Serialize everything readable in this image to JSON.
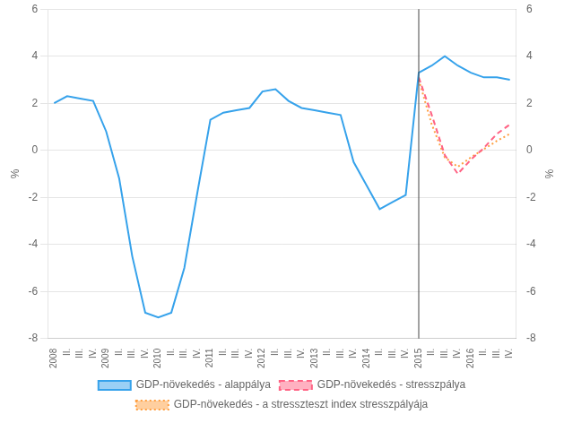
{
  "chart_data": {
    "type": "line",
    "categories": [
      "2008",
      "II.",
      "III.",
      "IV.",
      "2009",
      "II.",
      "III.",
      "IV.",
      "2010",
      "II.",
      "III.",
      "IV.",
      "2011",
      "II.",
      "III.",
      "IV.",
      "2012",
      "II.",
      "III.",
      "IV.",
      "2013",
      "II.",
      "III.",
      "IV.",
      "2014",
      "II.",
      "III.",
      "IV.",
      "2015",
      "II.",
      "III.",
      "IV.",
      "2016",
      "II.",
      "III.",
      "IV."
    ],
    "series": [
      {
        "name": "GDP-növekedés - alappálya",
        "line_style": "solid",
        "values": [
          2.0,
          2.3,
          2.2,
          2.1,
          0.8,
          -1.2,
          -4.5,
          -6.9,
          -7.1,
          -6.9,
          -5.0,
          -1.8,
          1.3,
          1.6,
          1.7,
          1.8,
          2.5,
          2.6,
          2.1,
          1.8,
          1.7,
          1.6,
          1.5,
          -0.5,
          -1.5,
          -2.5,
          -2.2,
          -1.9,
          3.3,
          3.6,
          4.0,
          3.6,
          3.3,
          3.1,
          3.1,
          3.0
        ]
      },
      {
        "name": "GDP-növekedés - stresszpálya",
        "line_style": "dashed",
        "values": [
          null,
          null,
          null,
          null,
          null,
          null,
          null,
          null,
          null,
          null,
          null,
          null,
          null,
          null,
          null,
          null,
          null,
          null,
          null,
          null,
          null,
          null,
          null,
          null,
          null,
          null,
          null,
          null,
          3.1,
          1.5,
          -0.2,
          -1.0,
          -0.4,
          0.1,
          0.7,
          1.1
        ]
      },
      {
        "name": "GDP-növekedés - a stresszteszt index stresszpályája",
        "line_style": "dotted",
        "values": [
          null,
          null,
          null,
          null,
          null,
          null,
          null,
          null,
          null,
          null,
          null,
          null,
          null,
          null,
          null,
          null,
          null,
          null,
          null,
          null,
          null,
          null,
          null,
          null,
          null,
          null,
          null,
          null,
          3.0,
          1.1,
          -0.3,
          -0.7,
          -0.3,
          0.05,
          0.4,
          0.7
        ]
      }
    ],
    "ylabel": "%",
    "y2label": "%",
    "ylim": [
      -8,
      6
    ],
    "yticks": [
      -8,
      -6,
      -4,
      -2,
      0,
      2,
      4,
      6
    ],
    "y2lim": [
      -8,
      6
    ],
    "y2ticks": [
      -8,
      -6,
      -4,
      -2,
      0,
      2,
      4,
      6
    ],
    "grid": "y",
    "legend": "bottom",
    "vline": "2015"
  }
}
